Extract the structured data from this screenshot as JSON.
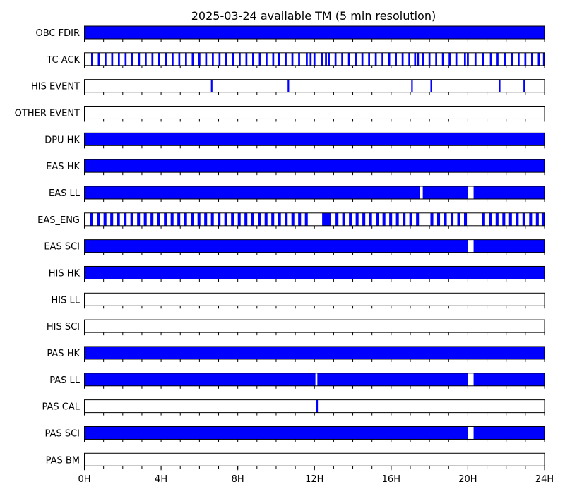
{
  "chart_data": {
    "type": "timeline",
    "title": "2025-03-24 available TM (5 min resolution)",
    "x_range": [
      0,
      24
    ],
    "x_ticks": [
      {
        "value": 0,
        "label": "0H"
      },
      {
        "value": 4,
        "label": "4H"
      },
      {
        "value": 8,
        "label": "8H"
      },
      {
        "value": 12,
        "label": "12H"
      },
      {
        "value": 16,
        "label": "16H"
      },
      {
        "value": 20,
        "label": "20H"
      },
      {
        "value": 24,
        "label": "24H"
      }
    ],
    "minor_tick_step_hours": 1,
    "fill_color": "#0000ff",
    "series": [
      {
        "name": "OBC FDIR",
        "intervals": [
          [
            0,
            24
          ]
        ]
      },
      {
        "name": "TC ACK",
        "intervals": [
          [
            0.35,
            0.45
          ],
          [
            0.7,
            0.8
          ],
          [
            1.05,
            1.15
          ],
          [
            1.4,
            1.5
          ],
          [
            1.75,
            1.85
          ],
          [
            2.1,
            2.2
          ],
          [
            2.45,
            2.55
          ],
          [
            2.8,
            2.9
          ],
          [
            3.15,
            3.25
          ],
          [
            3.5,
            3.6
          ],
          [
            3.85,
            3.95
          ],
          [
            4.2,
            4.3
          ],
          [
            4.55,
            4.65
          ],
          [
            4.9,
            5.0
          ],
          [
            5.25,
            5.35
          ],
          [
            5.6,
            5.7
          ],
          [
            5.95,
            6.05
          ],
          [
            6.3,
            6.4
          ],
          [
            6.65,
            6.75
          ],
          [
            7.0,
            7.1
          ],
          [
            7.35,
            7.45
          ],
          [
            7.7,
            7.8
          ],
          [
            8.05,
            8.15
          ],
          [
            8.4,
            8.5
          ],
          [
            8.75,
            8.85
          ],
          [
            9.1,
            9.2
          ],
          [
            9.45,
            9.55
          ],
          [
            9.8,
            9.9
          ],
          [
            10.1,
            10.2
          ],
          [
            10.45,
            10.55
          ],
          [
            10.8,
            10.9
          ],
          [
            11.15,
            11.25
          ],
          [
            11.55,
            11.65
          ],
          [
            11.75,
            11.85
          ],
          [
            11.95,
            12.05
          ],
          [
            12.35,
            12.45
          ],
          [
            12.55,
            12.65
          ],
          [
            12.7,
            12.8
          ],
          [
            13.05,
            13.15
          ],
          [
            13.4,
            13.5
          ],
          [
            13.75,
            13.85
          ],
          [
            14.1,
            14.2
          ],
          [
            14.45,
            14.55
          ],
          [
            14.8,
            14.9
          ],
          [
            15.15,
            15.25
          ],
          [
            15.5,
            15.6
          ],
          [
            15.85,
            15.95
          ],
          [
            16.2,
            16.3
          ],
          [
            16.55,
            16.65
          ],
          [
            16.9,
            17.0
          ],
          [
            17.2,
            17.3
          ],
          [
            17.35,
            17.45
          ],
          [
            17.6,
            17.7
          ],
          [
            17.95,
            18.05
          ],
          [
            18.3,
            18.4
          ],
          [
            18.65,
            18.75
          ],
          [
            19.0,
            19.1
          ],
          [
            19.35,
            19.45
          ],
          [
            19.8,
            19.9
          ],
          [
            19.95,
            20.05
          ],
          [
            20.35,
            20.45
          ],
          [
            20.75,
            20.85
          ],
          [
            21.15,
            21.25
          ],
          [
            21.5,
            21.6
          ],
          [
            21.9,
            22.0
          ],
          [
            22.25,
            22.35
          ],
          [
            22.6,
            22.7
          ],
          [
            22.95,
            23.05
          ],
          [
            23.3,
            23.4
          ],
          [
            23.65,
            23.75
          ],
          [
            23.92,
            24.0
          ]
        ]
      },
      {
        "name": "HIS EVENT",
        "intervals": [
          [
            6.6,
            6.68
          ],
          [
            10.6,
            10.68
          ],
          [
            17.05,
            17.13
          ],
          [
            18.05,
            18.13
          ],
          [
            21.62,
            21.7
          ],
          [
            22.9,
            22.98
          ]
        ]
      },
      {
        "name": "OTHER EVENT",
        "intervals": []
      },
      {
        "name": "DPU HK",
        "intervals": [
          [
            0,
            24
          ]
        ]
      },
      {
        "name": "EAS HK",
        "intervals": [
          [
            0,
            24
          ]
        ]
      },
      {
        "name": "EAS LL",
        "intervals": [
          [
            0,
            17.5
          ],
          [
            17.65,
            20.0
          ],
          [
            20.3,
            24
          ]
        ]
      },
      {
        "name": "EAS_ENG",
        "intervals": [
          [
            0.3,
            0.45
          ],
          [
            0.65,
            0.8
          ],
          [
            1.0,
            1.15
          ],
          [
            1.35,
            1.5
          ],
          [
            1.7,
            1.85
          ],
          [
            2.05,
            2.2
          ],
          [
            2.4,
            2.55
          ],
          [
            2.75,
            2.9
          ],
          [
            3.1,
            3.25
          ],
          [
            3.45,
            3.6
          ],
          [
            3.8,
            3.95
          ],
          [
            4.15,
            4.3
          ],
          [
            4.5,
            4.65
          ],
          [
            4.85,
            5.0
          ],
          [
            5.2,
            5.35
          ],
          [
            5.55,
            5.7
          ],
          [
            5.9,
            6.05
          ],
          [
            6.25,
            6.4
          ],
          [
            6.6,
            6.75
          ],
          [
            6.95,
            7.1
          ],
          [
            7.3,
            7.45
          ],
          [
            7.65,
            7.8
          ],
          [
            8.0,
            8.15
          ],
          [
            8.35,
            8.5
          ],
          [
            8.7,
            8.85
          ],
          [
            9.05,
            9.2
          ],
          [
            9.4,
            9.55
          ],
          [
            9.75,
            9.9
          ],
          [
            10.1,
            10.25
          ],
          [
            10.45,
            10.6
          ],
          [
            10.8,
            10.95
          ],
          [
            11.15,
            11.3
          ],
          [
            11.5,
            11.65
          ],
          [
            12.4,
            12.85
          ],
          [
            13.1,
            13.25
          ],
          [
            13.45,
            13.6
          ],
          [
            13.8,
            13.95
          ],
          [
            14.15,
            14.3
          ],
          [
            14.5,
            14.65
          ],
          [
            14.85,
            15.0
          ],
          [
            15.2,
            15.35
          ],
          [
            15.55,
            15.7
          ],
          [
            15.9,
            16.05
          ],
          [
            16.25,
            16.4
          ],
          [
            16.6,
            16.75
          ],
          [
            16.95,
            17.1
          ],
          [
            17.3,
            17.45
          ],
          [
            18.05,
            18.2
          ],
          [
            18.4,
            18.55
          ],
          [
            18.75,
            18.9
          ],
          [
            19.1,
            19.25
          ],
          [
            19.45,
            19.6
          ],
          [
            19.8,
            19.95
          ],
          [
            20.75,
            20.9
          ],
          [
            21.1,
            21.25
          ],
          [
            21.45,
            21.6
          ],
          [
            21.8,
            21.95
          ],
          [
            22.15,
            22.3
          ],
          [
            22.5,
            22.65
          ],
          [
            22.85,
            23.0
          ],
          [
            23.2,
            23.35
          ],
          [
            23.55,
            23.7
          ],
          [
            23.85,
            24.0
          ]
        ]
      },
      {
        "name": "EAS SCI",
        "intervals": [
          [
            0,
            20.0
          ],
          [
            20.3,
            24
          ]
        ]
      },
      {
        "name": "HIS HK",
        "intervals": [
          [
            0,
            24
          ]
        ]
      },
      {
        "name": "HIS LL",
        "intervals": []
      },
      {
        "name": "HIS SCI",
        "intervals": []
      },
      {
        "name": "PAS HK",
        "intervals": [
          [
            0,
            24
          ]
        ]
      },
      {
        "name": "PAS LL",
        "intervals": [
          [
            0,
            12.05
          ],
          [
            12.15,
            20.0
          ],
          [
            20.3,
            24
          ]
        ]
      },
      {
        "name": "PAS CAL",
        "intervals": [
          [
            12.1,
            12.18
          ]
        ]
      },
      {
        "name": "PAS SCI",
        "intervals": [
          [
            0,
            20.0
          ],
          [
            20.3,
            24
          ]
        ]
      },
      {
        "name": "PAS BM",
        "intervals": []
      }
    ]
  }
}
